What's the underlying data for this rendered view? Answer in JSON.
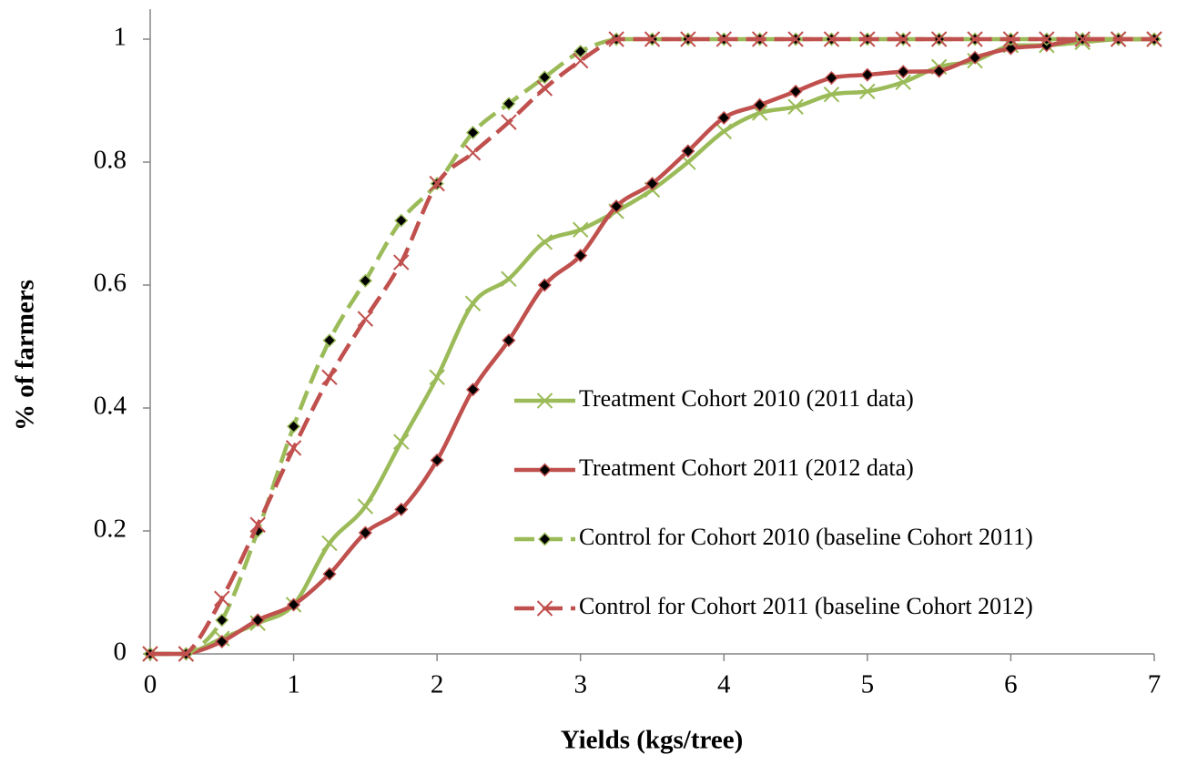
{
  "chart_data": {
    "type": "line",
    "xlabel": "Yields (kgs/tree)",
    "ylabel": "% of farmers",
    "x": [
      0,
      0.25,
      0.5,
      0.75,
      1,
      1.25,
      1.5,
      1.75,
      2,
      2.25,
      2.5,
      2.75,
      3,
      3.25,
      3.5,
      3.75,
      4,
      4.25,
      4.5,
      4.75,
      5,
      5.25,
      5.5,
      5.75,
      6,
      6.25,
      6.5,
      6.75,
      7
    ],
    "xlim": [
      0,
      7
    ],
    "xticks": [
      0,
      1,
      2,
      3,
      4,
      5,
      6,
      7
    ],
    "ylim": [
      0,
      1
    ],
    "yticks": [
      0,
      0.2,
      0.4,
      0.6,
      0.8,
      1
    ],
    "legend": "right",
    "series": [
      {
        "name": "Treatment Cohort 2010 (2011 data)",
        "color": "#9bbb59",
        "dash": false,
        "marker": "x",
        "values": [
          0,
          0,
          0.025,
          0.05,
          0.08,
          0.18,
          0.24,
          0.345,
          0.45,
          0.57,
          0.61,
          0.67,
          0.69,
          0.72,
          0.755,
          0.8,
          0.85,
          0.88,
          0.89,
          0.91,
          0.915,
          0.93,
          0.955,
          0.965,
          0.99,
          0.99,
          0.995,
          1,
          1
        ]
      },
      {
        "name": "Treatment Cohort 2011 (2012 data)",
        "color": "#c0504d",
        "dash": false,
        "marker": "diamond",
        "values": [
          0,
          0,
          0.02,
          0.055,
          0.08,
          0.13,
          0.197,
          0.235,
          0.315,
          0.43,
          0.51,
          0.6,
          0.648,
          0.728,
          0.765,
          0.818,
          0.872,
          0.893,
          0.915,
          0.937,
          0.942,
          0.947,
          0.948,
          0.97,
          0.985,
          0.99,
          1,
          1,
          1
        ]
      },
      {
        "name": "Control for Cohort 2010 (baseline Cohort 2011)",
        "color": "#9bbb59",
        "dash": true,
        "marker": "diamond",
        "values": [
          0,
          0,
          0.055,
          0.2,
          0.37,
          0.51,
          0.607,
          0.705,
          0.765,
          0.848,
          0.895,
          0.938,
          0.98,
          1,
          1,
          1,
          1,
          1,
          1,
          1,
          1,
          1,
          1,
          1,
          1,
          1,
          1,
          1,
          1
        ]
      },
      {
        "name": "Control for Cohort 2011 (baseline Cohort 2012)",
        "color": "#c0504d",
        "dash": true,
        "marker": "x",
        "values": [
          0,
          0,
          0.09,
          0.21,
          0.335,
          0.45,
          0.545,
          0.637,
          0.765,
          0.815,
          0.865,
          0.92,
          0.965,
          1,
          1,
          1,
          1,
          1,
          1,
          1,
          1,
          1,
          1,
          1,
          1,
          1,
          1,
          1,
          1
        ]
      }
    ]
  }
}
